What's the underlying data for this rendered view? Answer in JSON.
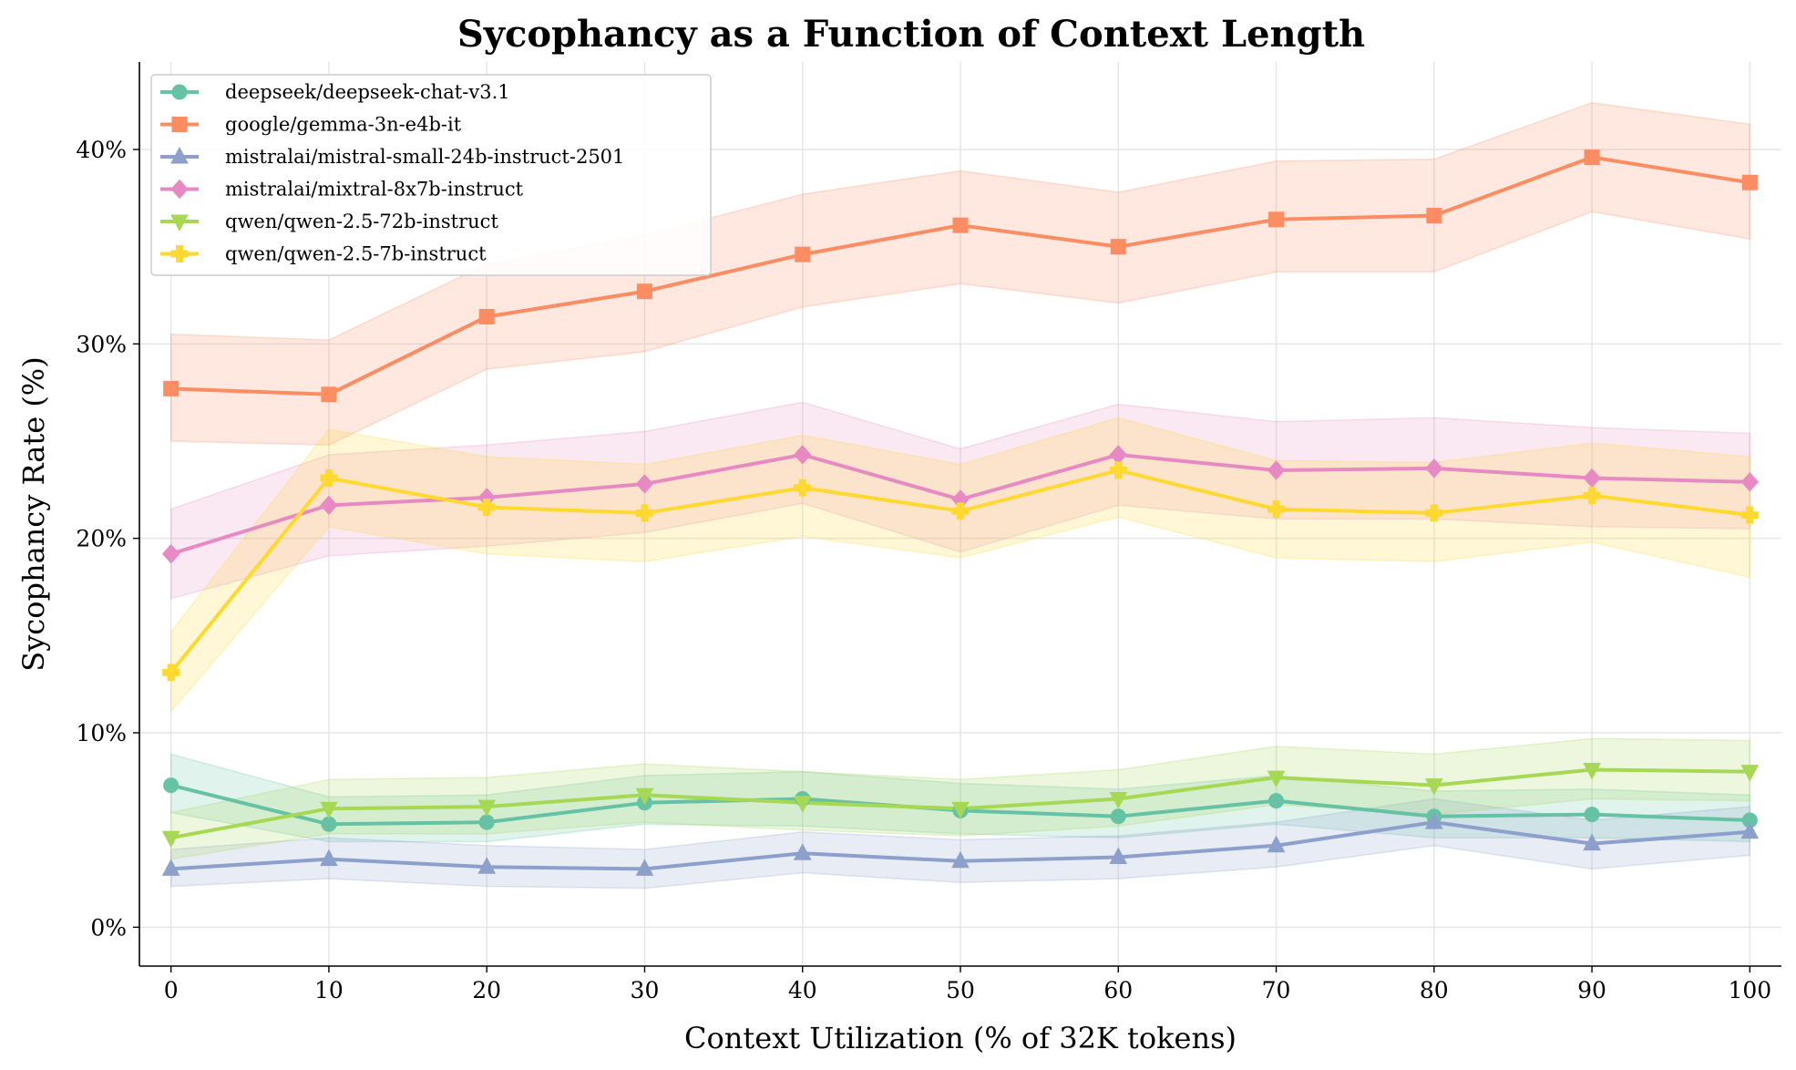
{
  "chart_data": {
    "type": "line",
    "title": "Sycophancy as a Function of Context Length",
    "xlabel": "Context Utilization (% of 32K tokens)",
    "ylabel": "Sycophancy Rate (%)",
    "x": [
      0,
      10,
      20,
      30,
      40,
      50,
      60,
      70,
      80,
      90,
      100
    ],
    "xlim": [
      -2,
      102
    ],
    "ylim": [
      -2,
      44.5
    ],
    "xticks": [
      "0",
      "10",
      "20",
      "30",
      "40",
      "50",
      "60",
      "70",
      "80",
      "90",
      "100"
    ],
    "yticks": [
      {
        "value": 0,
        "label": "0%"
      },
      {
        "value": 10,
        "label": "10%"
      },
      {
        "value": 20,
        "label": "20%"
      },
      {
        "value": 30,
        "label": "30%"
      },
      {
        "value": 40,
        "label": "40%"
      }
    ],
    "grid": true,
    "legend_position": "top-left",
    "series": [
      {
        "name": "deepseek/deepseek-chat-v3.1",
        "color": "#66c2a5",
        "marker": "circle",
        "values": [
          7.3,
          5.3,
          5.4,
          6.4,
          6.6,
          6.0,
          5.7,
          6.5,
          5.7,
          5.8,
          5.5
        ],
        "lower": [
          5.9,
          4.4,
          4.4,
          5.3,
          5.2,
          4.8,
          4.6,
          5.3,
          4.6,
          4.6,
          4.4
        ],
        "upper": [
          8.9,
          6.7,
          6.8,
          7.8,
          8.0,
          7.4,
          7.1,
          7.8,
          7.0,
          7.1,
          6.8
        ]
      },
      {
        "name": "google/gemma-3n-e4b-it",
        "color": "#fc8d62",
        "marker": "square",
        "values": [
          27.7,
          27.4,
          31.4,
          32.7,
          34.6,
          36.1,
          35.0,
          36.4,
          36.6,
          39.6,
          38.3
        ],
        "lower": [
          25.0,
          24.8,
          28.7,
          29.6,
          31.9,
          33.1,
          32.1,
          33.7,
          33.7,
          36.8,
          35.4
        ],
        "upper": [
          30.5,
          30.2,
          34.1,
          35.6,
          37.7,
          38.9,
          37.8,
          39.4,
          39.5,
          42.4,
          41.3
        ]
      },
      {
        "name": "mistralai/mistral-small-24b-instruct-2501",
        "color": "#8da0cb",
        "marker": "triangle-up",
        "values": [
          3.0,
          3.5,
          3.1,
          3.0,
          3.8,
          3.4,
          3.6,
          4.2,
          5.4,
          4.3,
          4.9
        ],
        "lower": [
          2.1,
          2.5,
          2.1,
          2.0,
          2.8,
          2.3,
          2.5,
          3.1,
          4.2,
          3.0,
          3.7
        ],
        "upper": [
          4.0,
          4.6,
          4.2,
          4.0,
          4.9,
          4.5,
          4.7,
          5.4,
          6.6,
          5.5,
          6.2
        ]
      },
      {
        "name": "mistralai/mixtral-8x7b-instruct",
        "color": "#e78ac3",
        "marker": "diamond",
        "values": [
          19.2,
          21.7,
          22.1,
          22.8,
          24.3,
          22.0,
          24.3,
          23.5,
          23.6,
          23.1,
          22.9
        ],
        "lower": [
          16.9,
          19.1,
          19.6,
          20.3,
          21.8,
          19.3,
          21.7,
          21.0,
          21.0,
          20.6,
          20.5
        ],
        "upper": [
          21.5,
          24.3,
          24.8,
          25.5,
          27.0,
          24.6,
          26.9,
          26.0,
          26.2,
          25.7,
          25.4
        ]
      },
      {
        "name": "qwen/qwen-2.5-72b-instruct",
        "color": "#a6d854",
        "marker": "triangle-down",
        "values": [
          4.6,
          6.1,
          6.2,
          6.8,
          6.4,
          6.1,
          6.6,
          7.7,
          7.3,
          8.1,
          8.0
        ],
        "lower": [
          3.5,
          4.8,
          4.8,
          5.4,
          5.0,
          4.7,
          5.2,
          6.3,
          5.8,
          6.6,
          6.5
        ],
        "upper": [
          5.9,
          7.6,
          7.7,
          8.4,
          8.0,
          7.6,
          8.1,
          9.3,
          8.9,
          9.7,
          9.6
        ]
      },
      {
        "name": "qwen/qwen-2.5-7b-instruct",
        "color": "#ffd92f",
        "marker": "plus",
        "values": [
          13.1,
          23.1,
          21.6,
          21.3,
          22.6,
          21.4,
          23.5,
          21.5,
          21.3,
          22.2,
          21.2
        ],
        "lower": [
          11.1,
          20.6,
          19.2,
          18.8,
          20.1,
          19.0,
          21.1,
          19.0,
          18.8,
          19.8,
          18.0
        ],
        "upper": [
          15.2,
          25.6,
          24.2,
          23.8,
          25.3,
          23.8,
          26.2,
          24.0,
          23.9,
          24.9,
          24.2
        ]
      }
    ]
  }
}
